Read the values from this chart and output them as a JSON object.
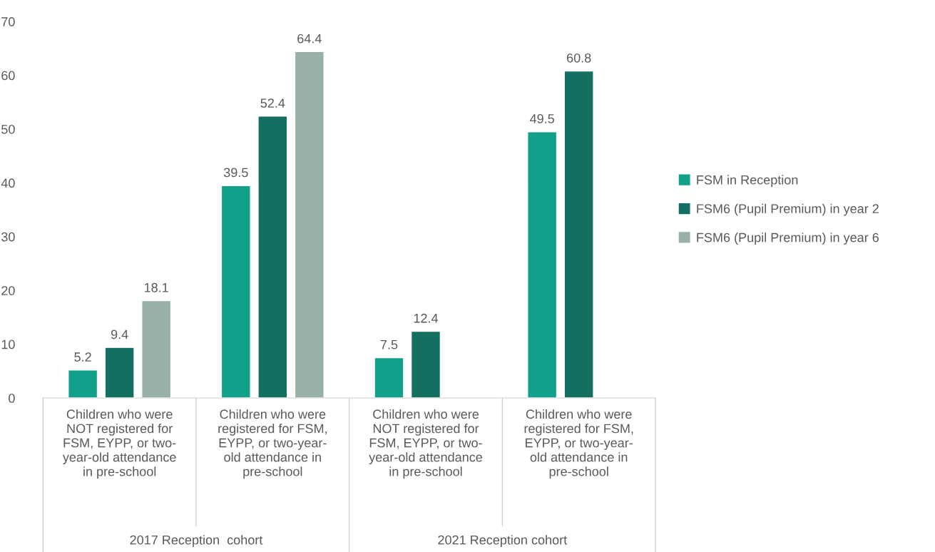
{
  "chart_data": {
    "type": "bar",
    "categories": [
      "Children who were\nNOT registered for\nFSM, EYPP, or two-\nyear-old attendance\nin pre-school",
      "Children who were\nregistered for FSM,\nEYPP, or two-year-\nold attendance in\npre-school",
      "Children who were\nNOT registered for\nFSM, EYPP, or two-\nyear-old attendance\nin pre-school",
      "Children who were\nregistered for FSM,\nEYPP, or two-year-\nold attendance in\npre-school"
    ],
    "series": [
      {
        "name": "FSM in Reception",
        "color": "#12a08b",
        "values": [
          5.2,
          39.5,
          7.5,
          49.5
        ]
      },
      {
        "name": "FSM6 (Pupil Premium) in year 2",
        "color": "#136f60",
        "values": [
          9.4,
          52.4,
          12.4,
          60.8
        ]
      },
      {
        "name": "FSM6 (Pupil Premium) in year 6",
        "color": "#98b0a8",
        "values": [
          18.1,
          64.4,
          null,
          null
        ]
      }
    ],
    "annotations": [
      "2017 Reception  cohort",
      "2021 Reception cohort"
    ],
    "ylim": [
      0,
      70
    ],
    "yticks": [
      0,
      10,
      20,
      30,
      40,
      50,
      60,
      70
    ],
    "data_labels": true,
    "grid": false,
    "legend": "right"
  }
}
